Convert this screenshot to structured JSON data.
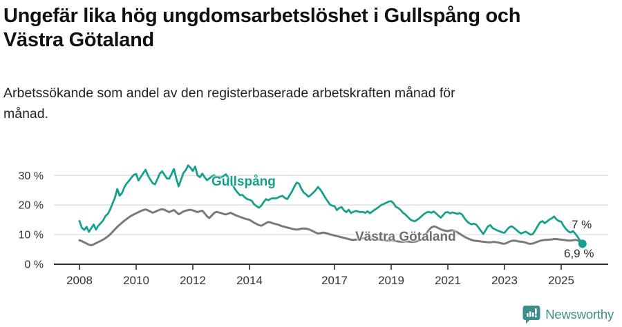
{
  "header": {
    "title_line1": "Ungefär lika hög ungdomsarbetslöshet i Gullspång och",
    "title_line2": "Västra Götaland",
    "subtitle_line1": "Arbetssökande som andel av den registerbaserade arbetskraften månad för",
    "subtitle_line2": "månad."
  },
  "colors": {
    "accent_teal": "#17a08d",
    "series_gray": "#7a7a7a",
    "grid": "#dddddd",
    "axis": "#2e2e2e",
    "logo_teal": "#3b8e8c"
  },
  "footer": {
    "brand": "Newsworthy",
    "logo_icon": "speech-bubble-bar-chart"
  },
  "chart_data": {
    "type": "line",
    "title": "Ungefär lika hög ungdomsarbetslöshet i Gullspång och Västra Götaland",
    "subtitle": "Arbetssökande som andel av den registerbaserade arbetskraften månad för månad.",
    "x_unit": "monthly, decimal years",
    "x_start": 2008.0,
    "x_step": 0.0833333,
    "x_end": 2025.75,
    "ylim": [
      0,
      35
    ],
    "grid": "horizontal-only",
    "legend_position": "inline-labels-on-lines",
    "y_ticks": [
      {
        "value": 0,
        "label": "0 %"
      },
      {
        "value": 10,
        "label": "10 %"
      },
      {
        "value": 20,
        "label": "20 %"
      },
      {
        "value": 30,
        "label": "30 %"
      }
    ],
    "x_ticks": [
      {
        "value": 2008,
        "label": "2008"
      },
      {
        "value": 2010,
        "label": "2010"
      },
      {
        "value": 2012,
        "label": "2012"
      },
      {
        "value": 2014,
        "label": "2014"
      },
      {
        "value": 2017,
        "label": "2017"
      },
      {
        "value": 2019,
        "label": "2019"
      },
      {
        "value": 2021,
        "label": "2021"
      },
      {
        "value": 2023,
        "label": "2023"
      },
      {
        "value": 2025,
        "label": "2025"
      }
    ],
    "series": [
      {
        "name": "Gullspång",
        "color": "#17a08d",
        "stroke_width": 2.8,
        "end_label": "6,9 %",
        "end_value": 6.9,
        "end_marker": true,
        "values": [
          14.6,
          12.3,
          11.6,
          12.6,
          10.9,
          12.2,
          13.4,
          11.7,
          13.0,
          13.9,
          14.8,
          16.3,
          17.0,
          18.5,
          20.5,
          22.5,
          25.4,
          23.2,
          24.0,
          26.0,
          27.3,
          28.2,
          29.3,
          30.2,
          30.5,
          28.3,
          29.5,
          30.8,
          31.9,
          30.0,
          28.6,
          27.4,
          27.0,
          28.8,
          30.6,
          31.4,
          30.2,
          29.0,
          28.9,
          30.5,
          32.2,
          29.0,
          26.3,
          28.5,
          30.8,
          31.8,
          33.4,
          32.6,
          31.5,
          33.0,
          30.0,
          29.4,
          30.6,
          29.4,
          28.4,
          29.0,
          29.6,
          30.1,
          29.3,
          29.6,
          29.3,
          29.8,
          30.4,
          29.2,
          28.0,
          26.6,
          25.2,
          24.2,
          23.3,
          23.4,
          22.6,
          22.0,
          21.8,
          21.4,
          20.2,
          19.6,
          19.1,
          19.8,
          21.0,
          22.0,
          21.6,
          22.1,
          22.3,
          22.2,
          22.5,
          22.9,
          23.1,
          22.4,
          22.0,
          23.3,
          24.6,
          26.2,
          27.6,
          27.2,
          25.4,
          24.2,
          23.6,
          22.8,
          23.4,
          24.2,
          25.0,
          26.1,
          25.2,
          24.0,
          22.6,
          21.4,
          20.2,
          19.8,
          19.6,
          18.3,
          19.0,
          19.3,
          18.2,
          17.6,
          18.4,
          17.3,
          17.7,
          18.0,
          17.8,
          17.6,
          17.7,
          17.3,
          17.9,
          17.2,
          17.8,
          18.4,
          18.9,
          19.5,
          20.1,
          20.4,
          20.8,
          21.2,
          21.3,
          20.6,
          19.4,
          19.0,
          18.3,
          17.4,
          16.8,
          16.0,
          15.2,
          14.7,
          14.5,
          15.0,
          15.6,
          16.3,
          17.0,
          17.5,
          17.7,
          17.4,
          17.8,
          17.2,
          16.4,
          15.7,
          16.6,
          17.5,
          17.6,
          17.2,
          17.5,
          17.3,
          17.0,
          17.3,
          16.8,
          15.6,
          14.6,
          13.9,
          13.5,
          13.7,
          13.4,
          12.4,
          11.3,
          10.2,
          11.5,
          12.8,
          13.2,
          12.2,
          11.8,
          11.4,
          11.1,
          10.8,
          10.6,
          11.6,
          12.5,
          12.8,
          12.3,
          11.6,
          10.9,
          10.4,
          10.7,
          11.0,
          10.5,
          10.0,
          10.2,
          11.4,
          12.8,
          14.1,
          14.6,
          13.9,
          14.4,
          15.1,
          15.5,
          16.1,
          15.2,
          14.6,
          14.4,
          13.0,
          11.9,
          11.1,
          10.7,
          11.2,
          10.3,
          9.2,
          8.0,
          6.9
        ]
      },
      {
        "name": "Västra Götaland",
        "color": "#7a7a7a",
        "stroke_width": 3.0,
        "end_label": "7 %",
        "end_value": 7.0,
        "end_marker": false,
        "values": [
          8.1,
          7.8,
          7.4,
          7.0,
          6.6,
          6.4,
          6.7,
          7.1,
          7.5,
          7.9,
          8.3,
          8.8,
          9.4,
          10.1,
          10.9,
          11.8,
          12.6,
          13.3,
          14.0,
          14.7,
          15.3,
          15.9,
          16.4,
          16.8,
          17.2,
          17.6,
          18.0,
          18.3,
          18.5,
          18.2,
          17.8,
          17.4,
          17.7,
          18.1,
          18.4,
          18.6,
          18.4,
          18.0,
          17.6,
          18.0,
          18.3,
          17.6,
          16.9,
          17.3,
          17.8,
          18.1,
          18.3,
          18.4,
          18.2,
          17.9,
          17.6,
          17.9,
          18.1,
          17.2,
          16.2,
          15.6,
          16.4,
          17.3,
          17.7,
          17.5,
          17.3,
          17.0,
          16.8,
          17.1,
          17.4,
          17.0,
          16.6,
          16.3,
          16.0,
          15.7,
          15.4,
          15.2,
          15.0,
          14.5,
          14.0,
          13.6,
          13.2,
          13.0,
          13.4,
          13.9,
          14.3,
          14.1,
          13.8,
          13.6,
          13.4,
          13.1,
          12.8,
          12.6,
          12.4,
          12.2,
          12.0,
          11.8,
          11.7,
          11.8,
          12.0,
          12.1,
          12.0,
          11.8,
          11.5,
          11.1,
          10.7,
          10.4,
          10.5,
          10.7,
          10.6,
          10.4,
          10.1,
          9.9,
          9.7,
          9.5,
          9.3,
          9.1,
          8.9,
          8.7,
          8.5,
          8.3,
          8.2,
          8.3,
          8.5,
          8.7,
          8.8,
          8.9,
          8.8,
          8.7,
          8.6,
          8.5,
          8.4,
          8.3,
          8.2,
          8.1,
          8.0,
          8.0,
          8.0,
          7.9,
          7.8,
          7.7,
          7.6,
          7.6,
          7.7,
          7.7,
          7.6,
          7.5,
          7.6,
          7.8,
          8.1,
          8.5,
          9.3,
          10.5,
          11.6,
          12.4,
          12.8,
          12.6,
          12.2,
          11.8,
          11.5,
          11.3,
          11.2,
          11.4,
          11.5,
          11.2,
          10.8,
          10.3,
          9.8,
          9.3,
          8.9,
          8.5,
          8.2,
          8.0,
          7.9,
          7.8,
          7.7,
          7.6,
          7.5,
          7.4,
          7.4,
          7.5,
          7.5,
          7.4,
          7.2,
          7.0,
          6.9,
          7.2,
          7.6,
          7.9,
          8.0,
          7.9,
          7.7,
          7.6,
          7.5,
          7.3,
          7.0,
          6.9,
          7.0,
          7.3,
          7.6,
          7.9,
          8.1,
          8.2,
          8.2,
          8.3,
          8.4,
          8.5,
          8.5,
          8.4,
          8.3,
          8.2,
          8.1,
          8.0,
          8.0,
          8.1,
          8.2,
          8.1,
          7.5,
          7.0
        ]
      }
    ]
  }
}
